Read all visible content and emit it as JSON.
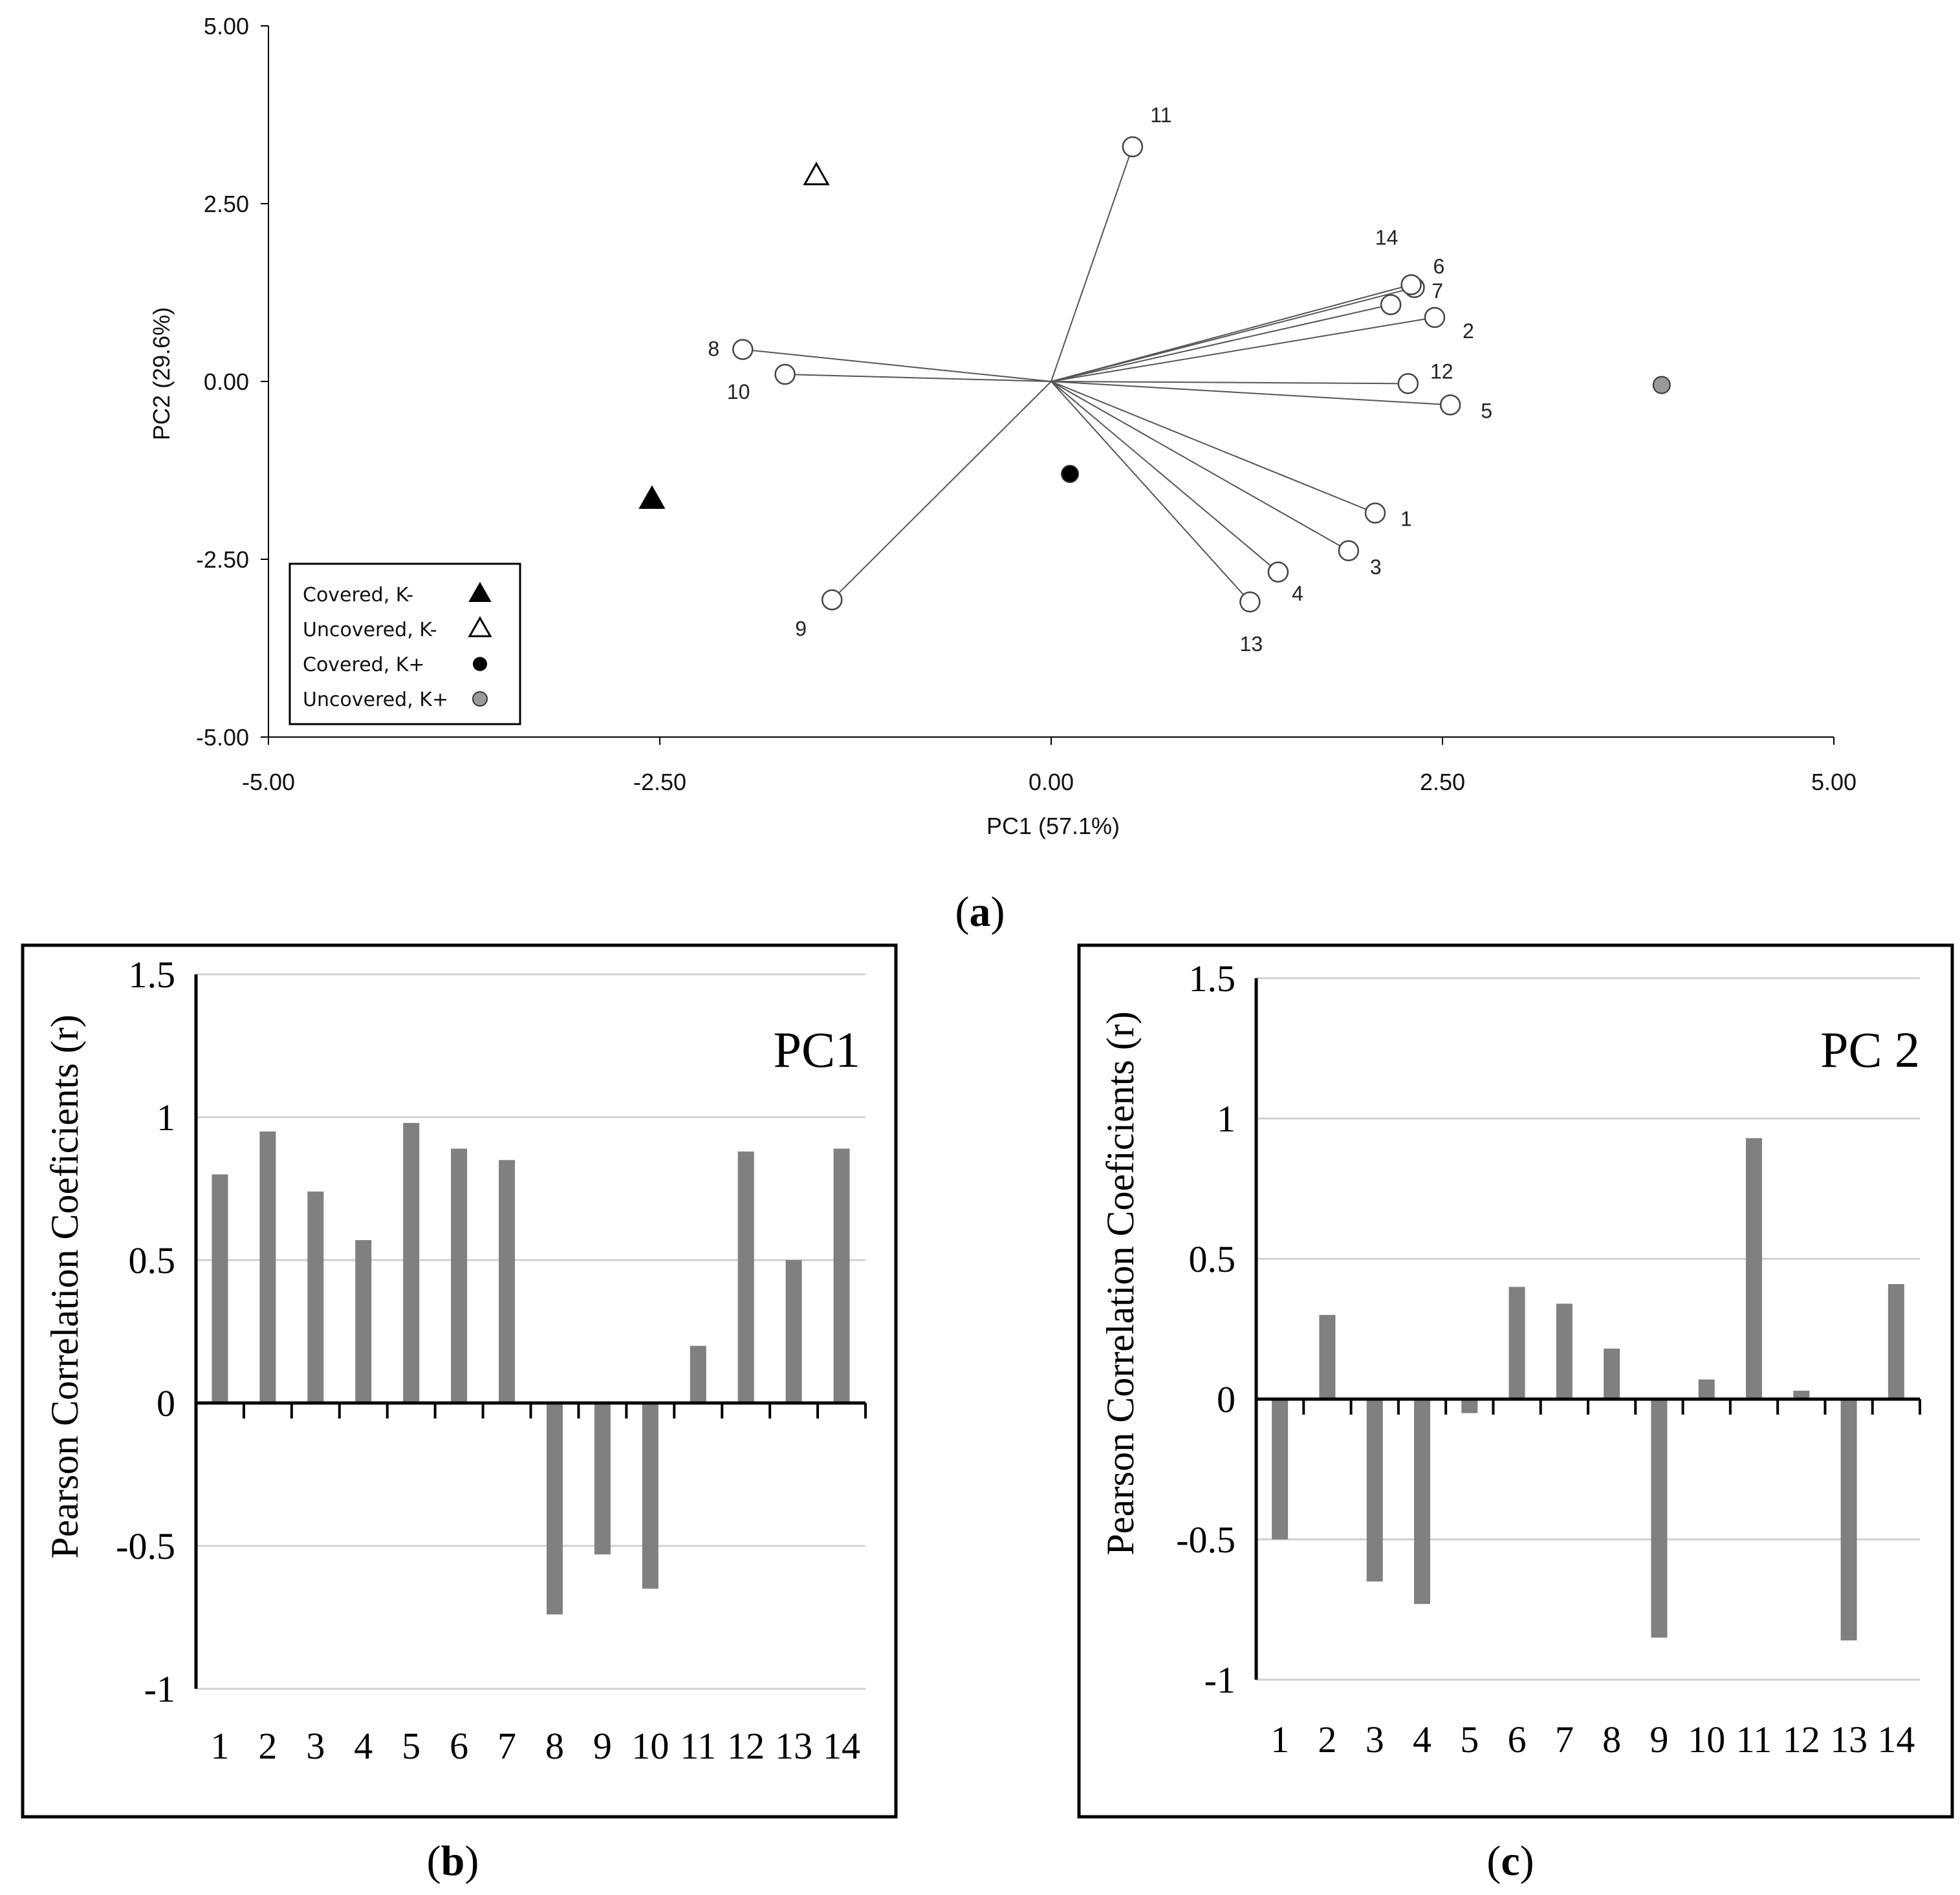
{
  "chart_data": [
    {
      "type": "scatter",
      "panel": "a",
      "caption": {
        "open": "(",
        "letter": "a",
        "close": ")"
      },
      "xlabel": "PC1 (57.1%)",
      "ylabel": "PC2 (29.6%)",
      "xlim": [
        -5,
        5
      ],
      "ylim": [
        -5,
        5
      ],
      "x_ticks": [
        "-5.00",
        "-2.50",
        "0.00",
        "2.50",
        "5.00"
      ],
      "y_ticks": [
        "5.00",
        "2.50",
        "0.00",
        "-2.50",
        "-5.00"
      ],
      "vectors": [
        {
          "label": "1",
          "x": 2.07,
          "y": -1.85
        },
        {
          "label": "2",
          "x": 2.45,
          "y": 0.9
        },
        {
          "label": "3",
          "x": 1.9,
          "y": -2.38
        },
        {
          "label": "4",
          "x": 1.45,
          "y": -2.68
        },
        {
          "label": "5",
          "x": 2.55,
          "y": -0.33
        },
        {
          "label": "6",
          "x": 2.32,
          "y": 1.32
        },
        {
          "label": "7",
          "x": 2.17,
          "y": 1.08
        },
        {
          "label": "8",
          "x": -1.97,
          "y": 0.45
        },
        {
          "label": "9",
          "x": -1.4,
          "y": -3.07
        },
        {
          "label": "10",
          "x": -1.7,
          "y": 0.1
        },
        {
          "label": "11",
          "x": 0.52,
          "y": 3.3
        },
        {
          "label": "12",
          "x": 2.28,
          "y": -0.03
        },
        {
          "label": "13",
          "x": 1.27,
          "y": -3.1
        },
        {
          "label": "14",
          "x": 2.3,
          "y": 1.36
        }
      ],
      "groups": [
        {
          "name": "Covered, K-",
          "marker": "triangle",
          "fill": "#000000",
          "x": -2.55,
          "y": -1.65
        },
        {
          "name": "Uncovered, K-",
          "marker": "triangle",
          "fill": "#ffffff",
          "x": -1.5,
          "y": 2.9
        },
        {
          "name": "Covered, K+",
          "marker": "circle",
          "fill": "#000000",
          "x": 0.12,
          "y": -1.3
        },
        {
          "name": "Uncovered, K+",
          "marker": "circle",
          "fill": "#999999",
          "x": 3.9,
          "y": -0.05
        }
      ]
    },
    {
      "type": "bar",
      "panel": "b",
      "caption": {
        "open": "(",
        "letter": "b",
        "close": ")"
      },
      "title": "PC1",
      "ylabel": "Pearson Correlation Coeficients (r)",
      "ylim": [
        -1,
        1.5
      ],
      "y_ticks": [
        "1.5",
        "1",
        "0.5",
        "0",
        "-0.5",
        "-1"
      ],
      "categories": [
        "1",
        "2",
        "3",
        "4",
        "5",
        "6",
        "7",
        "8",
        "9",
        "10",
        "11",
        "12",
        "13",
        "14"
      ],
      "values": [
        0.8,
        0.95,
        0.74,
        0.57,
        0.98,
        0.89,
        0.85,
        -0.74,
        -0.53,
        -0.65,
        0.2,
        0.88,
        0.5,
        0.89
      ],
      "bar_color": "#808080"
    },
    {
      "type": "bar",
      "panel": "c",
      "caption": {
        "open": "(",
        "letter": "c",
        "close": ")"
      },
      "title": "PC 2",
      "ylabel": "Pearson Correlation Coeficients (r)",
      "ylim": [
        -1,
        1.5
      ],
      "y_ticks": [
        "1.5",
        "1",
        "0.5",
        "0",
        "-0.5",
        "-1"
      ],
      "categories": [
        "1",
        "2",
        "3",
        "4",
        "5",
        "6",
        "7",
        "8",
        "9",
        "10",
        "11",
        "12",
        "13",
        "14"
      ],
      "values": [
        -0.5,
        0.3,
        -0.65,
        -0.73,
        -0.05,
        0.4,
        0.34,
        0.18,
        -0.85,
        0.07,
        0.93,
        0.03,
        -0.86,
        0.41
      ],
      "bar_color": "#808080"
    }
  ]
}
